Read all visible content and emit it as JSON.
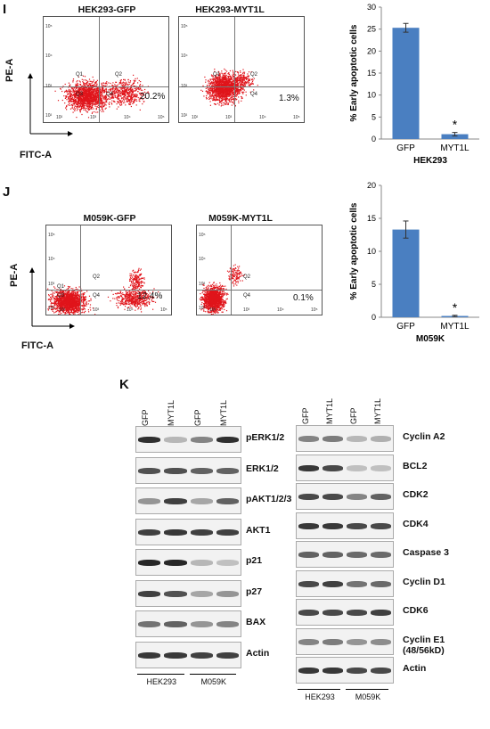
{
  "panel_i": {
    "label": "I",
    "flow_titles": [
      "HEK293-GFP",
      "HEK293-MYT1L"
    ],
    "y_axis": "PE-A",
    "x_axis": "FITC-A",
    "quad_labels": [
      "Q1",
      "Q2",
      "Q4"
    ],
    "q3_label": "Q3",
    "percents": [
      "20.2%",
      "1.3%"
    ],
    "ticks_y": [
      "10⁵",
      "10⁴",
      "10³",
      "10²"
    ],
    "ticks_x": [
      "10²",
      "10³",
      "10⁴",
      "10⁵"
    ]
  },
  "panel_j": {
    "label": "J",
    "flow_titles": [
      "M059K-GFP",
      "M059K-MYT1L"
    ],
    "y_axis": "PE-A",
    "x_axis": "FITC-A",
    "quad_labels": [
      "Q1",
      "Q2",
      "Q4"
    ],
    "q3_label": "Q3",
    "percents": [
      "12.4%",
      "0.1%"
    ],
    "ticks_y": [
      "10⁵",
      "10⁴",
      "10³",
      "10²"
    ],
    "ticks_x": [
      "10²",
      "10³",
      "10⁴",
      "10⁵"
    ]
  },
  "panel_k": {
    "label": "K",
    "lane_headers": [
      "GFP",
      "MYT1L",
      "GFP",
      "MYT1L"
    ],
    "groups": [
      "HEK293",
      "M059K"
    ],
    "left_blots": [
      "pERK1/2",
      "ERK1/2",
      "pAKT1/2/3",
      "AKT1",
      "p21",
      "p27",
      "BAX",
      "Actin"
    ],
    "right_blots": [
      "Cyclin A2",
      "BCL2",
      "CDK2",
      "CDK4",
      "Caspase 3",
      "Cyclin D1",
      "CDK6",
      "Cyclin E1\n(48/56kD)",
      "Actin"
    ]
  },
  "chart_data": [
    {
      "type": "bar",
      "categories": [
        "GFP",
        "MYT1L"
      ],
      "values": [
        25.3,
        1.1
      ],
      "errors": [
        1.0,
        0.4
      ],
      "significance": [
        "",
        "*"
      ],
      "ylabel": "% Early apoptotic cells",
      "xlabel": "HEK293",
      "ylim": [
        0,
        30
      ],
      "yticks": [
        0,
        5,
        10,
        15,
        20,
        25,
        30
      ],
      "color": "#4a7fc1"
    },
    {
      "type": "bar",
      "categories": [
        "GFP",
        "MYT1L"
      ],
      "values": [
        13.3,
        0.2
      ],
      "errors": [
        1.3,
        0.1
      ],
      "significance": [
        "",
        "*"
      ],
      "ylabel": "% Early apoptotic cells",
      "xlabel": "M059K",
      "ylim": [
        0,
        20
      ],
      "yticks": [
        0,
        5,
        10,
        15,
        20
      ],
      "color": "#4a7fc1"
    }
  ]
}
